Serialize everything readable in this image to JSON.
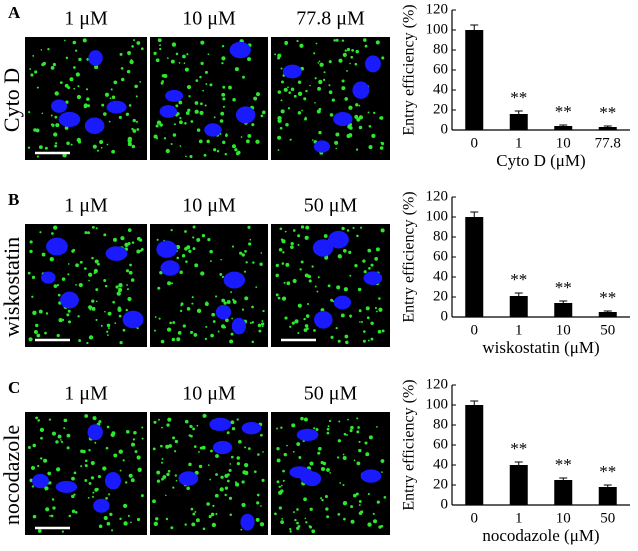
{
  "chart_data": [
    {
      "type": "bar",
      "panel_label": "A",
      "treatment_label": "Cyto D",
      "image_labels": [
        "1 μM",
        "10 μM",
        "77.8 μM"
      ],
      "y_label": "Entry efficiency (%)",
      "x_label": "Cyto D (μM)",
      "categories": [
        "0",
        "1",
        "10",
        "77.8"
      ],
      "values": [
        100,
        16,
        4,
        3
      ],
      "errors": [
        5,
        3,
        1,
        1
      ],
      "significance": [
        null,
        "**",
        "**",
        "**"
      ],
      "color": "#000000",
      "ylim": [
        0,
        120
      ],
      "yticks": [
        0,
        20,
        40,
        60,
        80,
        100,
        120
      ]
    },
    {
      "type": "bar",
      "panel_label": "B",
      "treatment_label": "wiskostatin",
      "image_labels": [
        "1 μM",
        "10 μM",
        "50 μM"
      ],
      "y_label": "Entry efficiency (%)",
      "x_label": "wiskostatin (μM)",
      "categories": [
        "0",
        "1",
        "10",
        "50"
      ],
      "values": [
        100,
        21,
        14,
        5
      ],
      "errors": [
        5,
        3,
        2,
        1
      ],
      "significance": [
        null,
        "**",
        "**",
        "**"
      ],
      "color": "#000000",
      "ylim": [
        0,
        120
      ],
      "yticks": [
        0,
        20,
        40,
        60,
        80,
        100,
        120
      ]
    },
    {
      "type": "bar",
      "panel_label": "C",
      "treatment_label": "nocodazole",
      "image_labels": [
        "1 μM",
        "10 μM",
        "50 μM"
      ],
      "y_label": "Entry efficiency (%)",
      "x_label": "nocodazole (μM)",
      "categories": [
        "0",
        "1",
        "10",
        "50"
      ],
      "values": [
        100,
        40,
        25,
        18
      ],
      "errors": [
        4,
        3,
        2,
        2
      ],
      "significance": [
        null,
        "**",
        "**",
        "**"
      ],
      "color": "#000000",
      "ylim": [
        0,
        120
      ],
      "yticks": [
        0,
        20,
        40,
        60,
        80,
        100,
        120
      ]
    }
  ]
}
